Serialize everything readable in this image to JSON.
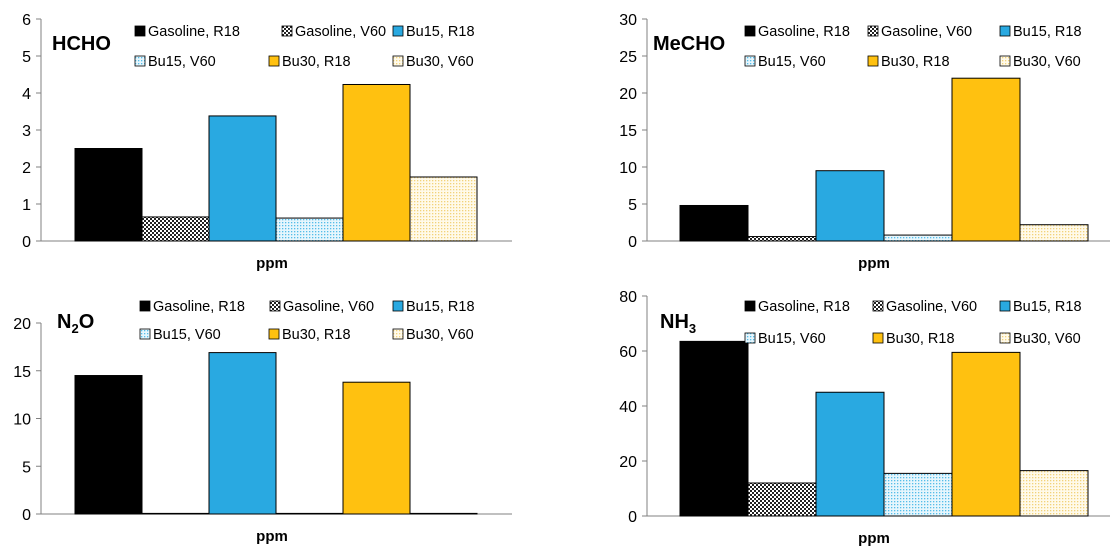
{
  "series_styles": {
    "gasoline_r18": {
      "fill": "#000000",
      "pattern": "solid"
    },
    "gasoline_v60": {
      "fill": "#9a9a9a",
      "pattern": "check"
    },
    "bu15_r18": {
      "fill": "#29a9e1",
      "pattern": "solid"
    },
    "bu15_v60": {
      "fill": "#c8ebfa",
      "pattern": "dots"
    },
    "bu30_r18": {
      "fill": "#ffc110",
      "pattern": "solid"
    },
    "bu30_v60": {
      "fill": "#fff2c8",
      "pattern": "dots"
    }
  },
  "chart_data": [
    {
      "type": "bar",
      "title": "HCHO",
      "xlabel": "ppm",
      "ylim": [
        0,
        6
      ],
      "yticks": [
        0,
        1,
        2,
        3,
        4,
        5,
        6
      ],
      "categories": [
        ""
      ],
      "series": [
        {
          "key": "gasoline_r18",
          "name": "Gasoline, R18",
          "values": [
            2.5
          ]
        },
        {
          "key": "gasoline_v60",
          "name": "Gasoline, V60",
          "values": [
            0.65
          ]
        },
        {
          "key": "bu15_r18",
          "name": "Bu15, R18",
          "values": [
            3.38
          ]
        },
        {
          "key": "bu15_v60",
          "name": "Bu15, V60",
          "values": [
            0.62
          ]
        },
        {
          "key": "bu30_r18",
          "name": "Bu30, R18",
          "values": [
            4.23
          ]
        },
        {
          "key": "bu30_v60",
          "name": "Bu30, V60",
          "values": [
            1.73
          ]
        }
      ],
      "legend": "top"
    },
    {
      "type": "bar",
      "title": "MeCHO",
      "xlabel": "ppm",
      "ylim": [
        0,
        30
      ],
      "yticks": [
        0,
        5,
        10,
        15,
        20,
        25,
        30
      ],
      "categories": [
        ""
      ],
      "series": [
        {
          "key": "gasoline_r18",
          "name": "Gasoline, R18",
          "values": [
            4.8
          ]
        },
        {
          "key": "gasoline_v60",
          "name": "Gasoline, V60",
          "values": [
            0.6
          ]
        },
        {
          "key": "bu15_r18",
          "name": "Bu15, R18",
          "values": [
            9.5
          ]
        },
        {
          "key": "bu15_v60",
          "name": "Bu15, V60",
          "values": [
            0.8
          ]
        },
        {
          "key": "bu30_r18",
          "name": "Bu30, R18",
          "values": [
            22.0
          ]
        },
        {
          "key": "bu30_v60",
          "name": "Bu30, V60",
          "values": [
            2.2
          ]
        }
      ],
      "legend": "top"
    },
    {
      "type": "bar",
      "title": "N2O",
      "title_main": "N",
      "title_sub": "2",
      "title_tail": "O",
      "xlabel": "ppm",
      "ylim": [
        0,
        20
      ],
      "yticks": [
        0,
        5,
        10,
        15,
        20
      ],
      "categories": [
        ""
      ],
      "series": [
        {
          "key": "gasoline_r18",
          "name": "Gasoline, R18",
          "values": [
            14.5
          ]
        },
        {
          "key": "gasoline_v60",
          "name": "Gasoline, V60",
          "values": [
            0.05
          ]
        },
        {
          "key": "bu15_r18",
          "name": "Bu15, R18",
          "values": [
            16.9
          ]
        },
        {
          "key": "bu15_v60",
          "name": "Bu15, V60",
          "values": [
            0.05
          ]
        },
        {
          "key": "bu30_r18",
          "name": "Bu30, R18",
          "values": [
            13.8
          ]
        },
        {
          "key": "bu30_v60",
          "name": "Bu30, V60",
          "values": [
            0.05
          ]
        }
      ],
      "legend": "top"
    },
    {
      "type": "bar",
      "title": "NH3",
      "title_main": "NH",
      "title_sub": "3",
      "title_tail": "",
      "xlabel": "ppm",
      "ylim": [
        0,
        80
      ],
      "yticks": [
        0,
        20,
        40,
        60,
        80
      ],
      "categories": [
        ""
      ],
      "series": [
        {
          "key": "gasoline_r18",
          "name": "Gasoline, R18",
          "values": [
            63.5
          ]
        },
        {
          "key": "gasoline_v60",
          "name": "Gasoline, V60",
          "values": [
            12.0
          ]
        },
        {
          "key": "bu15_r18",
          "name": "Bu15, R18",
          "values": [
            45.0
          ]
        },
        {
          "key": "bu15_v60",
          "name": "Bu15, V60",
          "values": [
            15.5
          ]
        },
        {
          "key": "bu30_r18",
          "name": "Bu30, R18",
          "values": [
            59.5
          ]
        },
        {
          "key": "bu30_v60",
          "name": "Bu30, V60",
          "values": [
            16.5
          ]
        }
      ],
      "legend": "top"
    }
  ]
}
